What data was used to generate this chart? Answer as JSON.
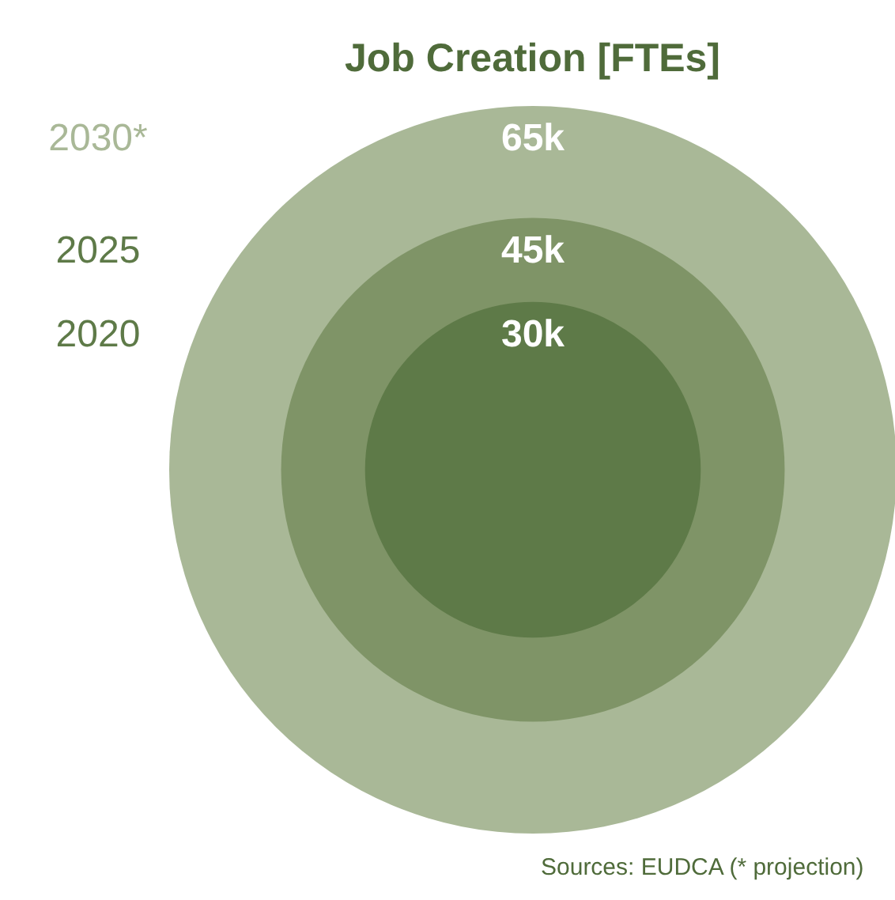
{
  "chart_data": {
    "type": "other",
    "title": "Job Creation [FTEs]",
    "categories": [
      "2030*",
      "2025",
      "2020"
    ],
    "values": [
      65000,
      45000,
      30000
    ],
    "colors": [
      "#a9b897",
      "#7f9467",
      "#5e7a48"
    ],
    "value_labels": [
      "65k",
      "45k",
      "30k"
    ],
    "annotations": [
      "Sources: EUDCA (* projection)"
    ]
  }
}
